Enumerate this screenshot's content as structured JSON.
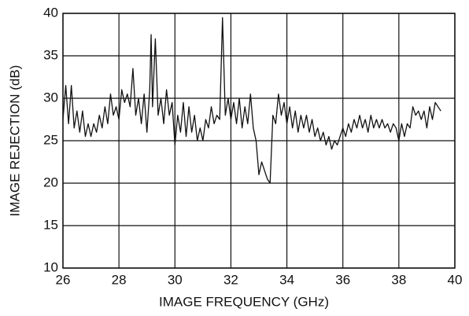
{
  "chart_data": {
    "type": "line",
    "xlabel": "IMAGE FREQUENCY (GHz)",
    "ylabel": "IMAGE REJECTION (dB)",
    "x": [
      26.0,
      26.1,
      26.2,
      26.3,
      26.4,
      26.5,
      26.6,
      26.7,
      26.8,
      26.9,
      27.0,
      27.1,
      27.2,
      27.3,
      27.4,
      27.5,
      27.6,
      27.7,
      27.8,
      27.9,
      28.0,
      28.1,
      28.2,
      28.3,
      28.4,
      28.5,
      28.6,
      28.7,
      28.8,
      28.9,
      29.0,
      29.1,
      29.15,
      29.2,
      29.3,
      29.4,
      29.5,
      29.6,
      29.7,
      29.8,
      29.9,
      30.0,
      30.1,
      30.2,
      30.3,
      30.4,
      30.5,
      30.6,
      30.7,
      30.8,
      30.9,
      31.0,
      31.1,
      31.2,
      31.3,
      31.4,
      31.5,
      31.6,
      31.7,
      31.8,
      31.9,
      32.0,
      32.1,
      32.2,
      32.3,
      32.4,
      32.5,
      32.6,
      32.7,
      32.8,
      32.9,
      33.0,
      33.1,
      33.2,
      33.3,
      33.4,
      33.5,
      33.6,
      33.7,
      33.8,
      33.9,
      34.0,
      34.1,
      34.2,
      34.3,
      34.4,
      34.5,
      34.6,
      34.7,
      34.8,
      34.9,
      35.0,
      35.1,
      35.2,
      35.3,
      35.4,
      35.5,
      35.6,
      35.7,
      35.8,
      35.9,
      36.0,
      36.1,
      36.2,
      36.3,
      36.4,
      36.5,
      36.6,
      36.7,
      36.8,
      36.9,
      37.0,
      37.1,
      37.2,
      37.3,
      37.4,
      37.5,
      37.6,
      37.7,
      37.8,
      37.9,
      38.0,
      38.1,
      38.2,
      38.3,
      38.4,
      38.5,
      38.6,
      38.7,
      38.8,
      38.9,
      39.0,
      39.1,
      39.2,
      39.3,
      39.4,
      39.5
    ],
    "series": [
      {
        "color": "#111111",
        "values": [
          27.5,
          31.5,
          27,
          31.5,
          26.5,
          28.5,
          26,
          28.5,
          25.5,
          27,
          25.5,
          27,
          26,
          28,
          26.5,
          29,
          27,
          30.5,
          28,
          29,
          27.5,
          31,
          29.5,
          30.5,
          29,
          33.5,
          28,
          30,
          27,
          30.5,
          26,
          31,
          37.5,
          29,
          37,
          28,
          30,
          27,
          31,
          28,
          29.5,
          24.5,
          28,
          26,
          29.5,
          25.5,
          29,
          26,
          28,
          25,
          26.5,
          25,
          27.5,
          26.5,
          29,
          27,
          28,
          27.5,
          39.5,
          28,
          30,
          27.5,
          29.5,
          27,
          30,
          26.5,
          29,
          27,
          30.5,
          26.5,
          25,
          21,
          22.5,
          21.5,
          20.5,
          20,
          28,
          27,
          30.5,
          28,
          29.5,
          27,
          29,
          26.5,
          28.5,
          26,
          28,
          26.5,
          28,
          26,
          27.5,
          25.5,
          26.5,
          25,
          26,
          24.5,
          25.5,
          24,
          25,
          24.5,
          25.5,
          26.5,
          25.5,
          27,
          26,
          27.5,
          26.5,
          28,
          26.5,
          27.5,
          26,
          28,
          26.5,
          27.5,
          26.5,
          27.5,
          26.5,
          27,
          26,
          27,
          26.5,
          25,
          27,
          25.5,
          27,
          26.5,
          29,
          28,
          28.5,
          27.5,
          28.5,
          26.5,
          29,
          27.5,
          29.5,
          29,
          28.5
        ]
      }
    ],
    "xlim": [
      26,
      40
    ],
    "xticks": [
      26,
      28,
      30,
      32,
      34,
      36,
      38,
      40
    ],
    "ylim": [
      10,
      40
    ],
    "yticks": [
      10,
      15,
      20,
      25,
      30,
      35,
      40
    ],
    "grid": true
  }
}
